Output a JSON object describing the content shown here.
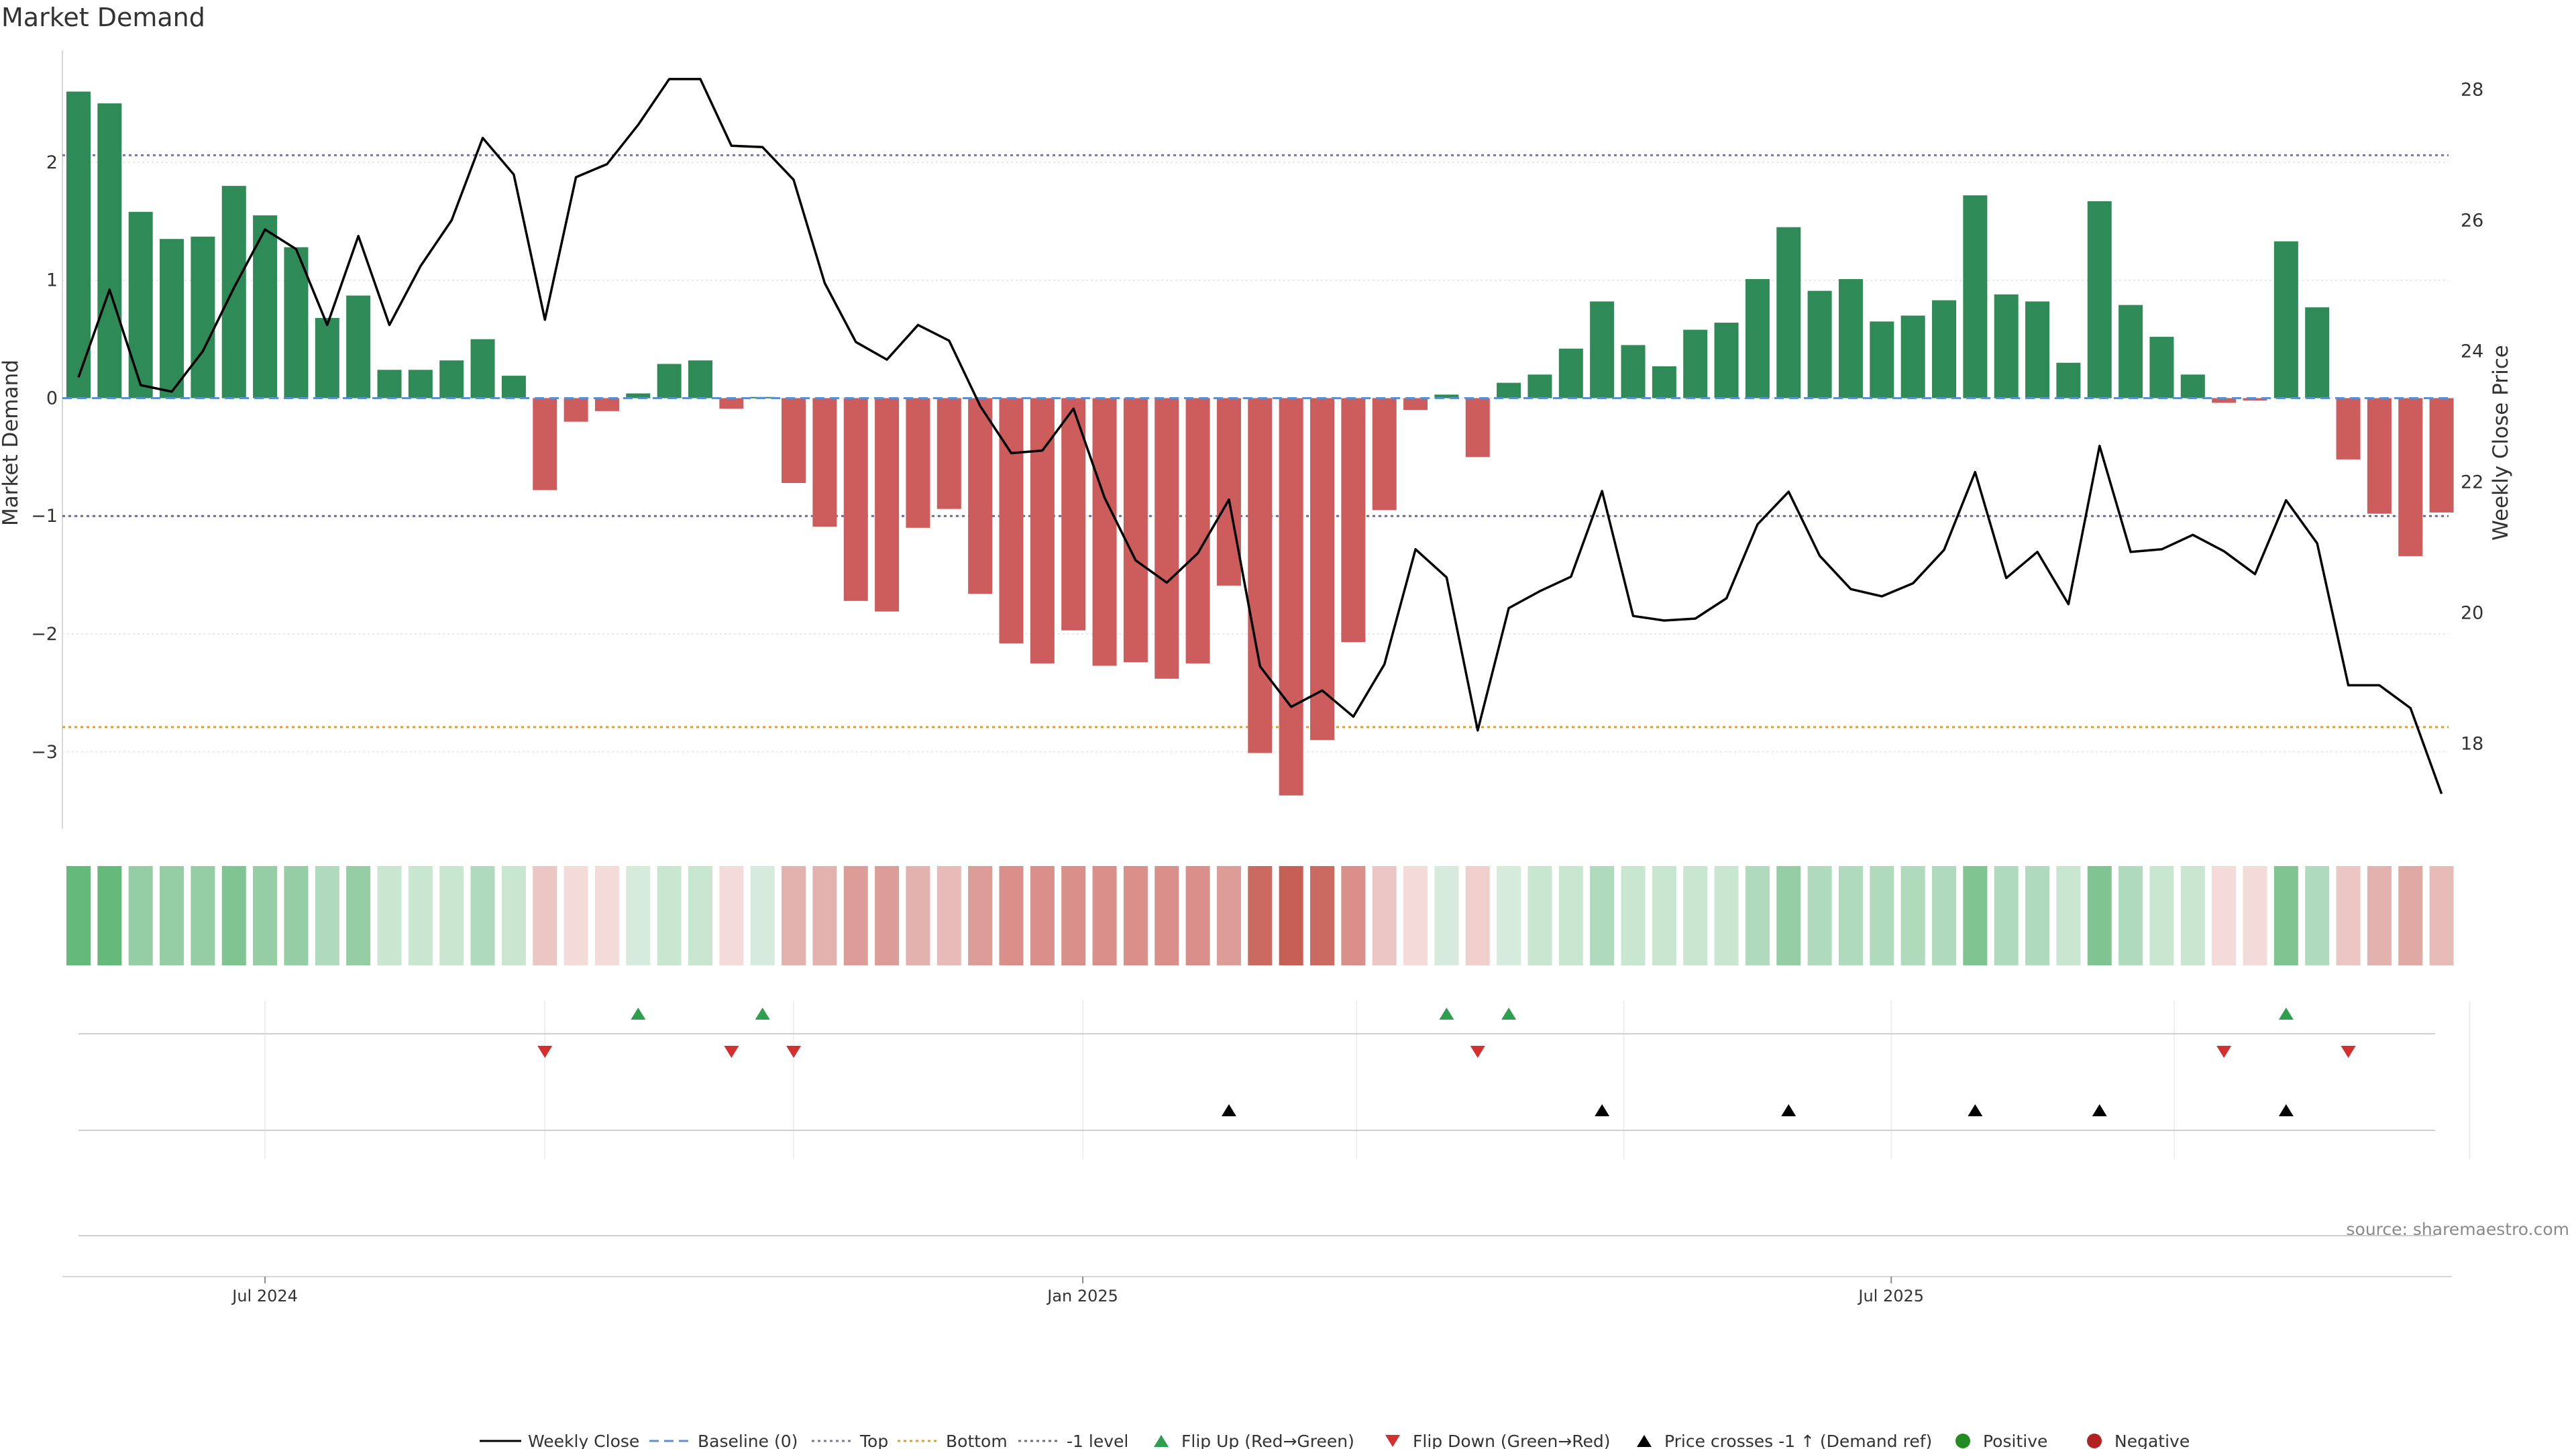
{
  "chart_data": {
    "type": "bar",
    "title": "Market Demand",
    "ylabel_left": "Market Demand",
    "ylabel_right": "Weekly Close Price",
    "source": "source: sharemaestro.com",
    "ylim_left": [
      -3.65,
      2.95
    ],
    "ylim_right": [
      16.7,
      28.6
    ],
    "left_ticks": [
      {
        "v": 2,
        "label": "2"
      },
      {
        "v": 1,
        "label": "1"
      },
      {
        "v": 0,
        "label": "0"
      },
      {
        "v": -1,
        "label": "−1"
      },
      {
        "v": -2,
        "label": "−2"
      },
      {
        "v": -3,
        "label": "−3"
      }
    ],
    "right_ticks": [
      {
        "v": 28,
        "label": "28"
      },
      {
        "v": 26,
        "label": "26"
      },
      {
        "v": 24,
        "label": "24"
      },
      {
        "v": 22,
        "label": "22"
      },
      {
        "v": 20,
        "label": "20"
      },
      {
        "v": 18,
        "label": "18"
      }
    ],
    "x_ticks": [
      {
        "index": 6,
        "label": "Jul 2024"
      },
      {
        "index": 32.3,
        "label": "Jan 2025"
      },
      {
        "index": 58.3,
        "label": "Jul 2025"
      }
    ],
    "reference_lines": [
      {
        "name": "Top",
        "value": 2.06,
        "color": "#7e72a8",
        "dash": "4,5"
      },
      {
        "name": "Bottom",
        "value": -2.79,
        "color": "#e39c2a",
        "dash": "4,5"
      },
      {
        "name": "-1 level",
        "value": -1.0,
        "color": "#6b6b8a",
        "dash": "4,5"
      },
      {
        "name": "Baseline (0)",
        "value": 0.0,
        "color": "#5b8fd0",
        "dash": "14,8"
      }
    ],
    "positive_color": "#2e8b57",
    "negative_color": "#cd5c5c",
    "demand": [
      2.6,
      2.5,
      1.58,
      1.35,
      1.37,
      1.8,
      1.55,
      1.28,
      0.68,
      0.87,
      0.24,
      0.24,
      0.32,
      0.5,
      0.19,
      -0.78,
      -0.2,
      -0.11,
      0.04,
      0.29,
      0.32,
      -0.09,
      0.01,
      -0.72,
      -1.09,
      -1.72,
      -1.81,
      -1.1,
      -0.94,
      -1.66,
      -2.08,
      -2.25,
      -1.97,
      -2.27,
      -2.24,
      -2.38,
      -2.25,
      -1.59,
      -3.01,
      -3.37,
      -2.9,
      -2.07,
      -0.95,
      -0.1,
      0.03,
      -0.5,
      0.13,
      0.2,
      0.42,
      0.82,
      0.45,
      0.27,
      0.58,
      0.64,
      1.01,
      1.45,
      0.91,
      1.01,
      0.65,
      0.7,
      0.83,
      1.72,
      0.88,
      0.82,
      0.3,
      1.67,
      0.79,
      0.52,
      0.2,
      -0.04,
      -0.02,
      1.33,
      0.77,
      -0.52,
      -0.98,
      -1.34,
      -0.97
    ],
    "weekly_close": [
      23.6,
      24.94,
      23.48,
      23.38,
      24.0,
      24.97,
      25.86,
      25.56,
      24.4,
      25.76,
      24.4,
      25.3,
      26.0,
      27.26,
      26.7,
      24.48,
      26.66,
      26.86,
      27.46,
      28.16,
      28.16,
      27.14,
      27.12,
      26.62,
      25.04,
      24.14,
      23.87,
      24.4,
      24.16,
      23.16,
      22.44,
      22.48,
      23.12,
      21.76,
      20.8,
      20.46,
      20.91,
      21.73,
      19.18,
      18.56,
      18.81,
      18.41,
      19.21,
      20.97,
      20.54,
      18.2,
      20.07,
      20.33,
      20.55,
      21.86,
      19.95,
      19.88,
      19.91,
      20.22,
      21.35,
      21.85,
      20.87,
      20.36,
      20.25,
      20.45,
      20.96,
      22.15,
      20.53,
      20.93,
      20.13,
      22.55,
      20.93,
      20.97,
      21.19,
      20.94,
      20.59,
      21.72,
      21.06,
      18.89,
      18.89,
      18.54,
      17.23
    ],
    "strip_colors": [
      "#64b97b",
      "#64b97b",
      "#95cda4",
      "#95cda4",
      "#95cda4",
      "#80c492",
      "#95cda4",
      "#95cda4",
      "#afdabb",
      "#95cda4",
      "#c9e6d1",
      "#c9e6d1",
      "#c9e6d1",
      "#afdabb",
      "#c9e6d1",
      "#ebc6c3",
      "#f3dbd9",
      "#f3dbd9",
      "#d6ebdc",
      "#c9e6d1",
      "#c9e6d1",
      "#f3dbd9",
      "#d6ebdc",
      "#e3b2ae",
      "#e3b2ae",
      "#dc9d98",
      "#dc9d98",
      "#e3b2ae",
      "#e7bcb8",
      "#dc9d98",
      "#d9908b",
      "#d9908b",
      "#d9908b",
      "#d9908b",
      "#d9908b",
      "#d9908b",
      "#d9908b",
      "#dc9d98",
      "#cb6a60",
      "#c65f54",
      "#cb6a60",
      "#d9908b",
      "#ebc6c3",
      "#f3dbd9",
      "#d6ebdc",
      "#f0cfcc",
      "#d6ebdc",
      "#c9e6d1",
      "#c9e6d1",
      "#afdabb",
      "#c9e6d1",
      "#c9e6d1",
      "#c9e6d1",
      "#c9e6d1",
      "#afdabb",
      "#95cda4",
      "#afdabb",
      "#afdabb",
      "#afdabb",
      "#afdabb",
      "#afdabb",
      "#80c492",
      "#afdabb",
      "#afdabb",
      "#c9e6d1",
      "#80c492",
      "#afdabb",
      "#c9e6d1",
      "#c9e6d1",
      "#f3dbd9",
      "#f3dbd9",
      "#80c492",
      "#afdabb",
      "#ebc6c3",
      "#e3b2ae",
      "#e0a9a4",
      "#e7bcb8"
    ],
    "flip_up_indices": [
      18,
      22,
      44,
      46,
      71
    ],
    "flip_down_indices": [
      15,
      21,
      23,
      45,
      69,
      73
    ],
    "price_cross_indices": [
      37,
      49,
      55,
      61,
      65,
      71
    ],
    "legend": [
      {
        "label": "Weekly Close",
        "kind": "line",
        "color": "#000000",
        "dash": ""
      },
      {
        "label": "Baseline (0)",
        "kind": "line",
        "color": "#5b8fd0",
        "dash": "14,8"
      },
      {
        "label": "Top",
        "kind": "line",
        "color": "#7e72a8",
        "dash": "4,5"
      },
      {
        "label": "Bottom",
        "kind": "line",
        "color": "#e39c2a",
        "dash": "4,5"
      },
      {
        "label": "-1 level",
        "kind": "line",
        "color": "#6b6b8a",
        "dash": "4,5"
      },
      {
        "label": "Flip Up (Red→Green)",
        "kind": "tri-up",
        "color": "#2e9e4f"
      },
      {
        "label": "Flip Down (Green→Red)",
        "kind": "tri-down",
        "color": "#d32f2f"
      },
      {
        "label": "Price crosses -1 ↑ (Demand ref)",
        "kind": "tri-up",
        "color": "#000000"
      },
      {
        "label": "Positive",
        "kind": "dot",
        "color": "#228b22"
      },
      {
        "label": "Negative",
        "kind": "dot",
        "color": "#b22222"
      }
    ]
  }
}
